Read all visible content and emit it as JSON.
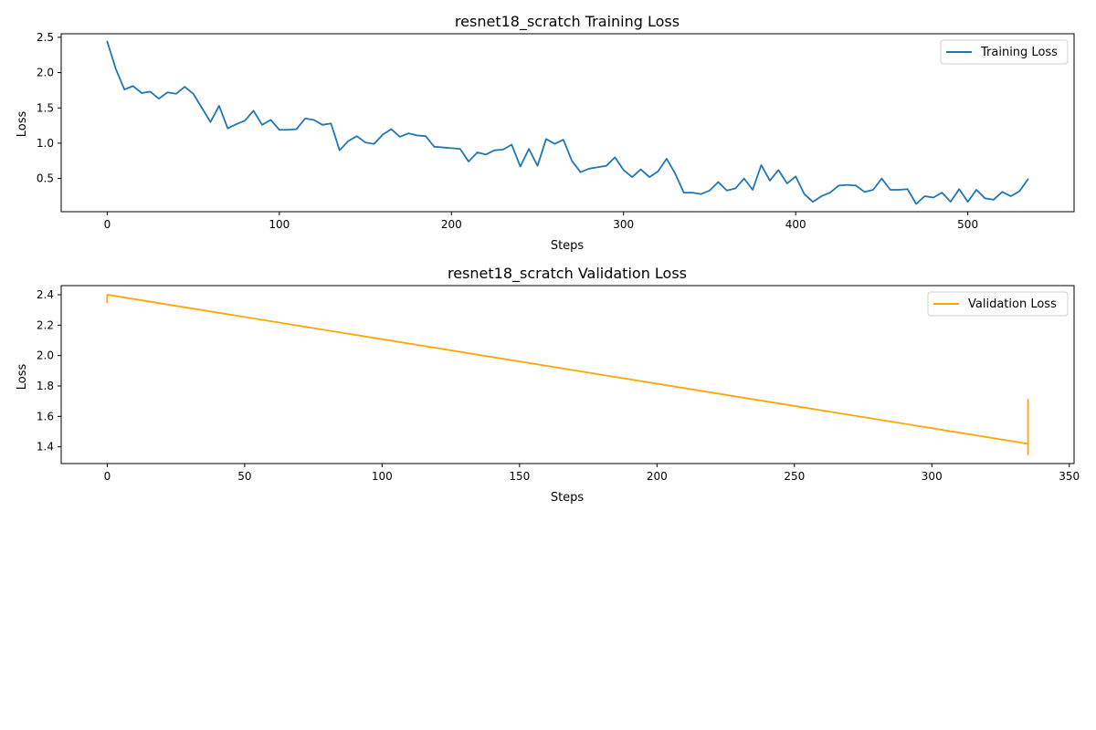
{
  "chart_data": [
    {
      "type": "line",
      "title": "resnet18_scratch Training Loss",
      "xlabel": "Steps",
      "ylabel": "Loss",
      "xlim": [
        -26.75,
        561.75
      ],
      "ylim": [
        0.03,
        2.55
      ],
      "xticks": [
        0,
        100,
        200,
        300,
        400,
        500
      ],
      "yticks": [
        0.5,
        1.0,
        1.5,
        2.0,
        2.5
      ],
      "x_tick_labels": [
        "0",
        "100",
        "200",
        "300",
        "400",
        "500"
      ],
      "y_tick_labels": [
        "0.5",
        "1.0",
        "1.5",
        "2.0",
        "2.5"
      ],
      "grid": false,
      "legend_position": "upper right",
      "series": [
        {
          "name": "Training Loss",
          "color": "#1f77b4",
          "x": [
            0,
            5,
            10,
            15,
            20,
            25,
            30,
            35,
            40,
            45,
            50,
            55,
            60,
            65,
            70,
            75,
            80,
            85,
            90,
            95,
            100,
            105,
            110,
            115,
            120,
            125,
            130,
            135,
            140,
            145,
            150,
            155,
            160,
            165,
            170,
            175,
            180,
            185,
            190,
            195,
            200,
            205,
            210,
            215,
            220,
            225,
            230,
            235,
            240,
            245,
            250,
            255,
            260,
            265,
            270,
            275,
            280,
            285,
            290,
            295,
            300,
            305,
            310,
            315,
            320,
            325,
            330,
            335,
            340,
            345,
            350,
            355,
            360,
            365,
            370,
            375,
            380,
            385,
            390,
            395,
            400,
            405,
            410,
            415,
            420,
            425,
            430,
            435,
            440,
            445,
            450,
            455,
            460,
            465,
            470,
            475,
            480,
            485,
            490,
            495,
            500,
            505,
            510,
            515,
            520,
            525,
            530,
            535
          ],
          "y": [
            2.44,
            2.05,
            1.76,
            1.81,
            1.71,
            1.73,
            1.63,
            1.72,
            1.7,
            1.8,
            1.7,
            1.5,
            1.3,
            1.53,
            1.21,
            1.27,
            1.32,
            1.46,
            1.26,
            1.33,
            1.19,
            1.19,
            1.2,
            1.35,
            1.33,
            1.26,
            1.28,
            0.9,
            1.03,
            1.1,
            1.01,
            0.99,
            1.12,
            1.2,
            1.09,
            1.14,
            1.11,
            1.1,
            0.95,
            0.94,
            0.93,
            0.92,
            0.74,
            0.87,
            0.84,
            0.9,
            0.91,
            0.98,
            0.67,
            0.92,
            0.68,
            1.06,
            0.99,
            1.05,
            0.75,
            0.59,
            0.64,
            0.66,
            0.68,
            0.8,
            0.62,
            0.52,
            0.63,
            0.52,
            0.6,
            0.78,
            0.57,
            0.3,
            0.3,
            0.28,
            0.33,
            0.45,
            0.33,
            0.36,
            0.5,
            0.34,
            0.69,
            0.47,
            0.62,
            0.43,
            0.53,
            0.28,
            0.17,
            0.25,
            0.3,
            0.4,
            0.41,
            0.4,
            0.31,
            0.34,
            0.5,
            0.34,
            0.34,
            0.35,
            0.14,
            0.25,
            0.23,
            0.3,
            0.17,
            0.35,
            0.17,
            0.34,
            0.22,
            0.2,
            0.31,
            0.25,
            0.32,
            0.49
          ]
        }
      ]
    },
    {
      "type": "line",
      "title": "resnet18_scratch Validation Loss",
      "xlabel": "Steps",
      "ylabel": "Loss",
      "xlim": [
        -16.75,
        351.75
      ],
      "ylim": [
        1.29,
        2.46
      ],
      "xticks": [
        0,
        50,
        100,
        150,
        200,
        250,
        300,
        350
      ],
      "yticks": [
        1.4,
        1.6,
        1.8,
        2.0,
        2.2,
        2.4
      ],
      "x_tick_labels": [
        "0",
        "50",
        "100",
        "150",
        "200",
        "250",
        "300",
        "350"
      ],
      "y_tick_labels": [
        "1.4",
        "1.6",
        "1.8",
        "2.0",
        "2.2",
        "2.4"
      ],
      "grid": false,
      "legend_position": "upper right",
      "series": [
        {
          "name": "Validation Loss",
          "color": "#ffa500",
          "x": [
            0,
            0,
            0,
            335,
            335,
            335,
            335,
            335,
            335
          ],
          "y": [
            2.35,
            2.4,
            2.4,
            1.42,
            1.53,
            1.71,
            1.35,
            1.47,
            1.42
          ]
        }
      ]
    }
  ]
}
